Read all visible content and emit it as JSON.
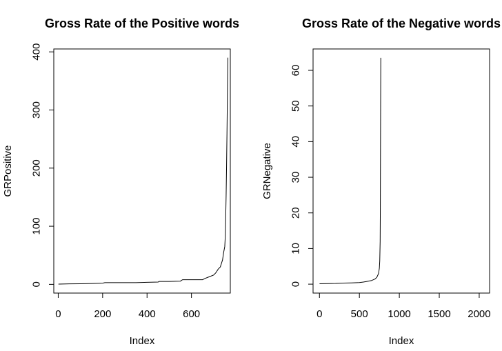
{
  "chart_data": [
    {
      "type": "line",
      "title": "Gross Rate of the Positive words",
      "xlabel": "Index",
      "ylabel": "GRPositive",
      "xlim": [
        -20,
        775
      ],
      "ylim": [
        -15,
        405
      ],
      "xticks": [
        0,
        200,
        400,
        600
      ],
      "yticks": [
        0,
        100,
        200,
        300,
        400
      ],
      "grid": false,
      "series": [
        {
          "x": [
            1,
            50,
            100,
            150,
            200,
            210,
            300,
            350,
            400,
            450,
            455,
            500,
            550,
            560,
            600,
            650,
            660,
            680,
            700,
            710,
            720,
            730,
            740,
            745,
            750,
            752,
            754,
            756,
            758,
            760,
            762,
            764
          ],
          "y": [
            0.5,
            0.8,
            1,
            1.5,
            2,
            3,
            3,
            3,
            3.5,
            4,
            5,
            5,
            5.5,
            8,
            8,
            8,
            10,
            13,
            16,
            20,
            26,
            30,
            42,
            55,
            65,
            80,
            110,
            150,
            200,
            260,
            330,
            390
          ]
        }
      ]
    },
    {
      "type": "line",
      "title": "Gross Rate of the Negative words",
      "xlabel": "Index",
      "ylabel": "GRNegative",
      "xlim": [
        -80,
        2130
      ],
      "ylim": [
        -2.5,
        66
      ],
      "xticks": [
        0,
        500,
        1000,
        1500,
        2000
      ],
      "yticks": [
        0,
        10,
        20,
        30,
        40,
        50,
        60
      ],
      "grid": false,
      "series": [
        {
          "x": [
            1,
            100,
            200,
            300,
            400,
            500,
            550,
            600,
            650,
            700,
            720,
            740,
            750,
            755,
            760,
            762,
            764,
            766,
            768
          ],
          "y": [
            0.1,
            0.15,
            0.2,
            0.3,
            0.35,
            0.45,
            0.6,
            0.8,
            1.0,
            1.5,
            2.0,
            3.0,
            4.5,
            6.5,
            12,
            20,
            35,
            50,
            63.5
          ]
        }
      ]
    }
  ]
}
